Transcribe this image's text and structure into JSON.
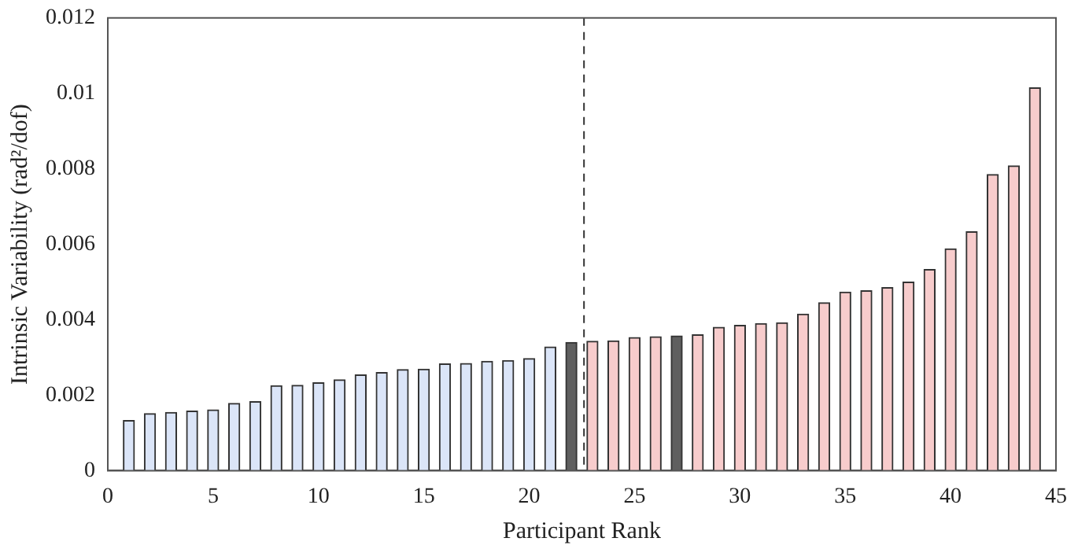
{
  "chart_data": {
    "type": "bar",
    "xlabel": "Participant Rank",
    "ylabel": "Intrinsic Variability (rad²/dof)",
    "x": [
      1,
      2,
      3,
      4,
      5,
      6,
      7,
      8,
      9,
      10,
      11,
      12,
      13,
      14,
      15,
      16,
      17,
      18,
      19,
      20,
      21,
      22,
      23,
      24,
      25,
      26,
      27,
      28,
      29,
      30,
      31,
      32,
      33,
      34,
      35,
      36,
      37,
      38,
      39,
      40,
      41,
      42,
      43,
      44
    ],
    "values": [
      0.00133,
      0.00151,
      0.00154,
      0.00158,
      0.00161,
      0.00178,
      0.00183,
      0.00225,
      0.00226,
      0.00233,
      0.00241,
      0.00254,
      0.0026,
      0.00268,
      0.00269,
      0.00283,
      0.00284,
      0.0029,
      0.00292,
      0.00297,
      0.00328,
      0.0034,
      0.00343,
      0.00344,
      0.00353,
      0.00355,
      0.00357,
      0.0036,
      0.0038,
      0.00385,
      0.0039,
      0.00392,
      0.00415,
      0.00445,
      0.00473,
      0.00477,
      0.00485,
      0.005,
      0.00533,
      0.00588,
      0.00633,
      0.00785,
      0.00808,
      0.01015
    ],
    "colors": [
      "#dbe5f8",
      "#dbe5f8",
      "#dbe5f8",
      "#dbe5f8",
      "#dbe5f8",
      "#dbe5f8",
      "#dbe5f8",
      "#dbe5f8",
      "#dbe5f8",
      "#dbe5f8",
      "#dbe5f8",
      "#dbe5f8",
      "#dbe5f8",
      "#dbe5f8",
      "#dbe5f8",
      "#dbe5f8",
      "#dbe5f8",
      "#dbe5f8",
      "#dbe5f8",
      "#dbe5f8",
      "#dbe5f8",
      "#5f5f5f",
      "#f7cccc",
      "#f7cccc",
      "#f7cccc",
      "#f7cccc",
      "#5f5f5f",
      "#f7cccc",
      "#f7cccc",
      "#f7cccc",
      "#f7cccc",
      "#f7cccc",
      "#f7cccc",
      "#f7cccc",
      "#f7cccc",
      "#f7cccc",
      "#f7cccc",
      "#f7cccc",
      "#f7cccc",
      "#f7cccc",
      "#f7cccc",
      "#f7cccc",
      "#f7cccc",
      "#f7cccc"
    ],
    "xlim": [
      0,
      45
    ],
    "xticks": [
      0,
      5,
      10,
      15,
      20,
      25,
      30,
      35,
      40,
      45
    ],
    "ylim": [
      0,
      0.012
    ],
    "yticks": [
      0,
      0.002,
      0.004,
      0.006,
      0.008,
      0.01,
      0.012
    ],
    "ref_lines": [
      {
        "axis": "x",
        "value": 22.6,
        "color": "#333333",
        "line_style": "dashed"
      }
    ],
    "grid": false,
    "legend": false
  }
}
